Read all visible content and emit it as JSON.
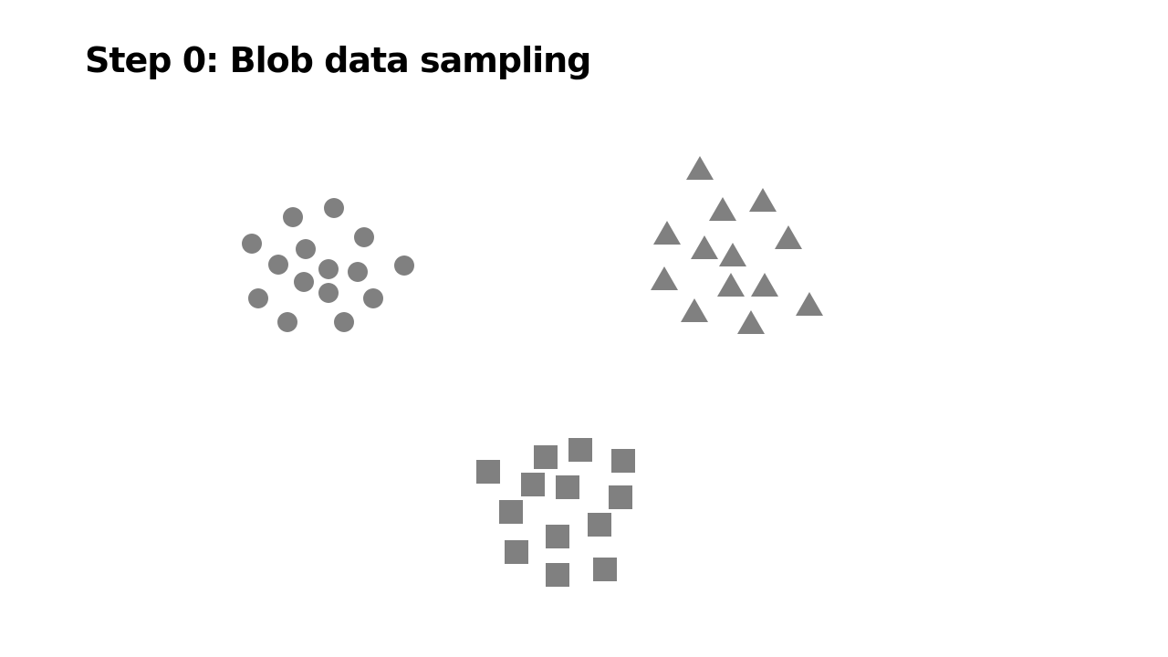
{
  "slide": {
    "title": "Step 0: Blob data sampling"
  },
  "colors": {
    "background": "#ffffff",
    "title": "#000000",
    "marker": "#808080"
  },
  "clusters": [
    {
      "name": "circle-cluster",
      "marker": "circle"
    },
    {
      "name": "triangle-cluster",
      "marker": "triangle"
    },
    {
      "name": "square-cluster",
      "marker": "square"
    }
  ]
}
